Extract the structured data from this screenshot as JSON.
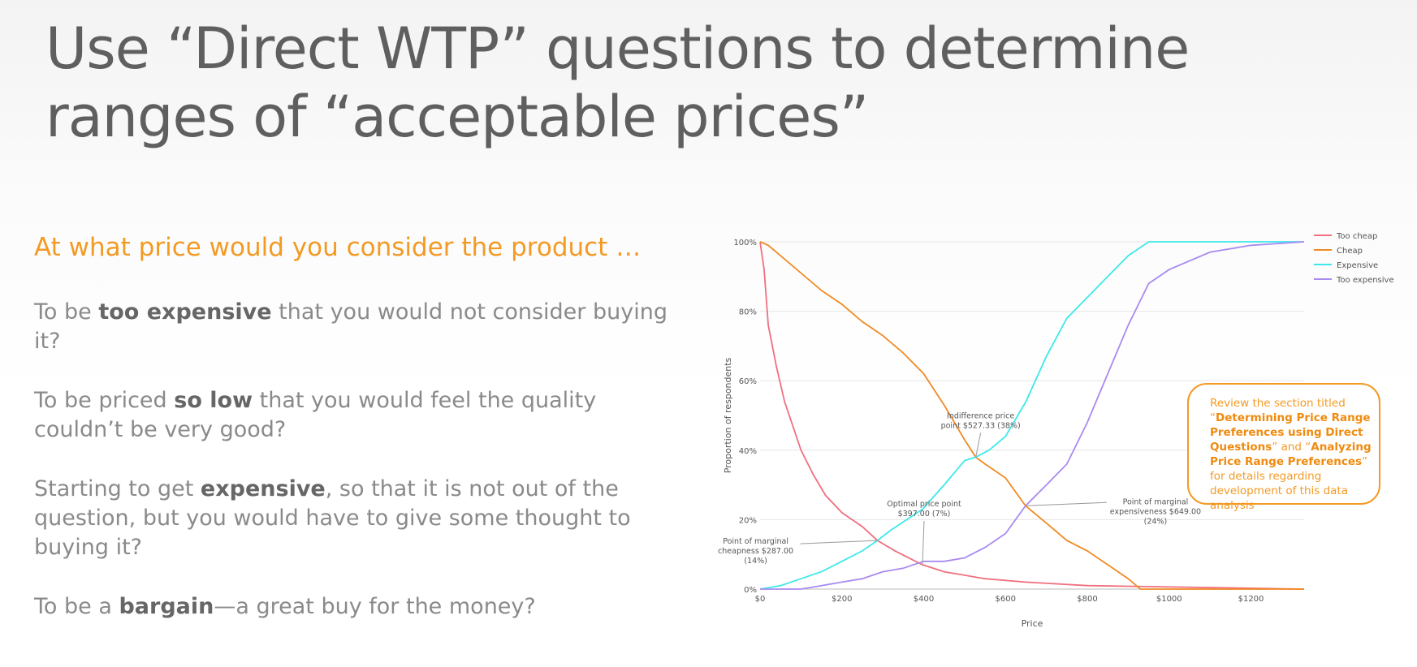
{
  "slide": {
    "title_line1": "Use “Direct WTP” questions to determine",
    "title_line2": "ranges of “acceptable prices”",
    "question_heading": "At what price would you consider the product …",
    "questions": [
      {
        "pre": "To be ",
        "bold": "too expensive",
        "post": " that you would not consider buying it?"
      },
      {
        "pre": "To be priced ",
        "bold": "so low",
        "post": " that you would feel the quality couldn’t be very good?"
      },
      {
        "pre": "Starting to get ",
        "bold": "expensive",
        "post": ", so that it is not out of the question, but you would have to give some thought to buying it?"
      },
      {
        "pre": "To be a ",
        "bold": "bargain",
        "post": "—a great buy for the money?"
      }
    ]
  },
  "callout": {
    "t1": "Review the section titled “",
    "b1": "Determining Price Range Preferences using Direct Questions",
    "t2": "” and “",
    "b2": "Analyzing Price Range Preferences",
    "t3": "” for details regarding development of this data analysis"
  },
  "chart_data": {
    "type": "line",
    "xlabel": "Price",
    "ylabel": "Proportion of respondents",
    "xlim": [
      0,
      1330
    ],
    "ylim": [
      0,
      100
    ],
    "x_ticks": [
      0,
      200,
      400,
      600,
      800,
      1000,
      1200
    ],
    "x_tick_labels": [
      "$0",
      "$200",
      "$400",
      "$600",
      "$800",
      "$1000",
      "$1200"
    ],
    "y_ticks": [
      0,
      20,
      40,
      60,
      80,
      100
    ],
    "y_tick_labels": [
      "0%",
      "20%",
      "40%",
      "60%",
      "80%",
      "100%"
    ],
    "legend_position": "top-right",
    "grid": true,
    "colors": {
      "too_cheap": "#f0707f",
      "cheap": "#f08a24",
      "expensive": "#3ee8ea",
      "too_expensive": "#a98af0"
    },
    "series": [
      {
        "name": "Too cheap",
        "key": "too_cheap",
        "x": [
          0,
          10,
          20,
          40,
          60,
          80,
          100,
          130,
          160,
          200,
          250,
          287,
          330,
          397,
          450,
          500,
          550,
          650,
          800,
          1330
        ],
        "y": [
          100,
          92,
          76,
          64,
          54,
          47,
          40,
          33,
          27,
          22,
          18,
          14,
          11,
          7,
          5,
          4,
          3,
          2,
          1,
          0
        ]
      },
      {
        "name": "Cheap",
        "key": "cheap",
        "x": [
          0,
          20,
          50,
          100,
          150,
          200,
          250,
          300,
          350,
          400,
          450,
          500,
          527,
          550,
          600,
          649,
          700,
          750,
          800,
          850,
          900,
          930,
          1330
        ],
        "y": [
          100,
          99,
          96,
          91,
          86,
          82,
          77,
          73,
          68,
          62,
          53,
          43,
          38,
          36,
          32,
          24,
          19,
          14,
          11,
          7,
          3,
          0,
          0
        ]
      },
      {
        "name": "Expensive",
        "key": "expensive",
        "x": [
          0,
          50,
          100,
          150,
          200,
          250,
          287,
          320,
          397,
          450,
          500,
          527,
          560,
          600,
          650,
          700,
          750,
          800,
          850,
          900,
          950,
          1000,
          1330
        ],
        "y": [
          0,
          1,
          3,
          5,
          8,
          11,
          14,
          17,
          23,
          30,
          37,
          38,
          40,
          44,
          54,
          67,
          78,
          84,
          90,
          96,
          100,
          100,
          100
        ]
      },
      {
        "name": "Too expensive",
        "key": "too_expensive",
        "x": [
          0,
          100,
          150,
          200,
          250,
          300,
          350,
          400,
          450,
          500,
          550,
          600,
          649,
          700,
          750,
          800,
          850,
          900,
          950,
          1000,
          1100,
          1200,
          1330
        ],
        "y": [
          0,
          0,
          1,
          2,
          3,
          5,
          6,
          8,
          8,
          9,
          12,
          16,
          24,
          30,
          36,
          48,
          62,
          76,
          88,
          92,
          97,
          99,
          100
        ]
      }
    ],
    "annotations": [
      {
        "line1": "Indifference price",
        "line2": "point $527.33 (38%)",
        "line3": "",
        "x": 527.33,
        "y": 38
      },
      {
        "line1": "Optimal price point",
        "line2": "$397.00 (7%)",
        "line3": "",
        "x": 397,
        "y": 7
      },
      {
        "line1": "Point of marginal",
        "line2": "cheapness $287.00",
        "line3": "(14%)",
        "x": 287,
        "y": 14
      },
      {
        "line1": "Point of marginal",
        "line2": "expensiveness $649.00",
        "line3": "(24%)",
        "x": 649,
        "y": 24
      }
    ]
  }
}
